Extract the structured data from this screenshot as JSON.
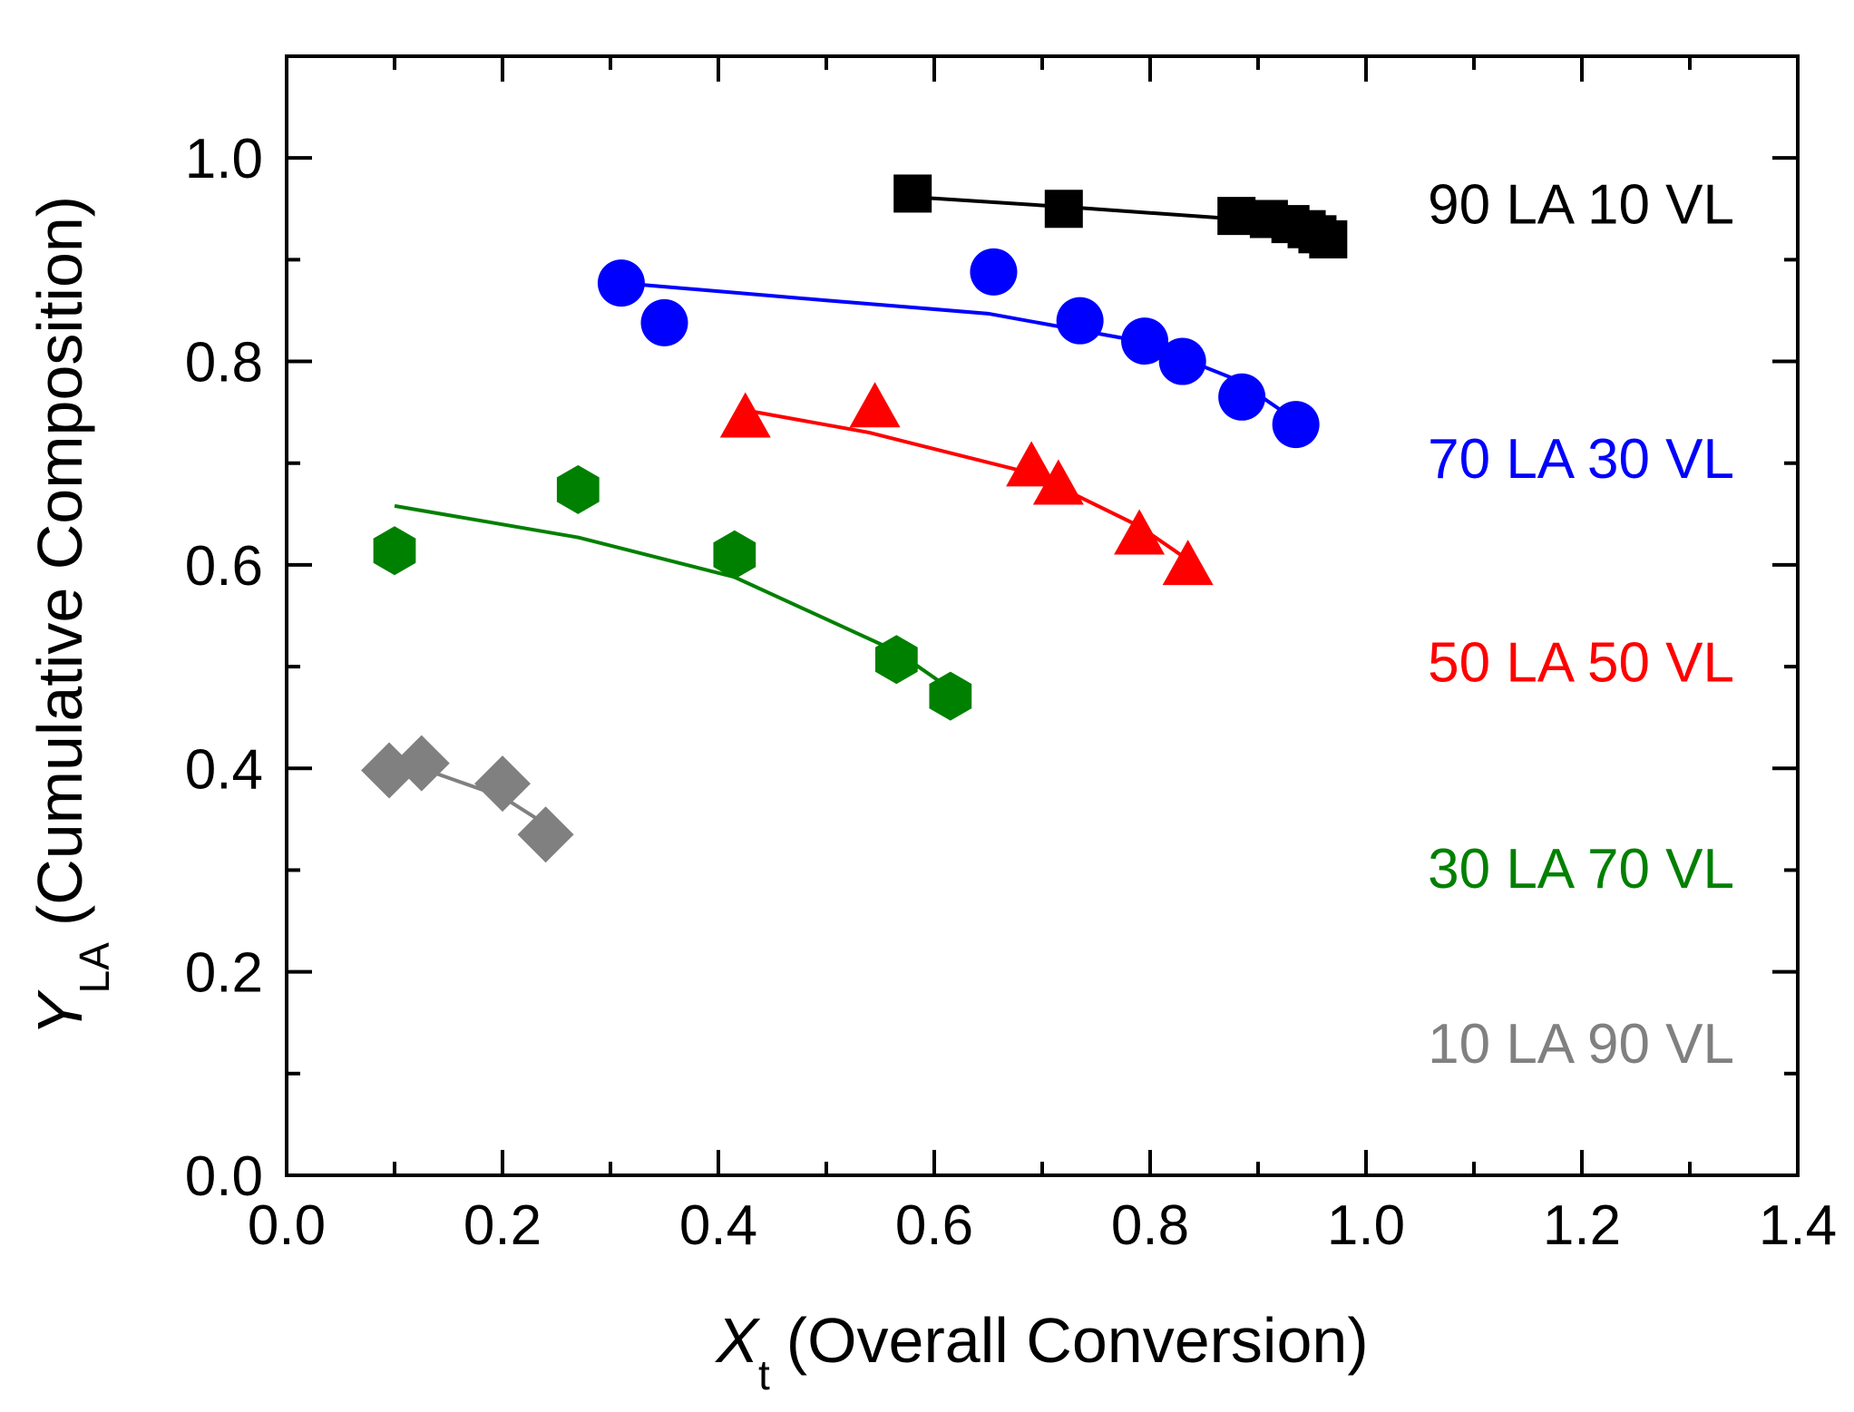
{
  "chart_data": {
    "type": "scatter",
    "title": "",
    "xlabel": {
      "symbol": "X",
      "subscript": "t",
      "text": "(Overall Conversion)"
    },
    "ylabel": {
      "symbol": "Y",
      "subscript": "LA",
      "text": "(Cumulative Composition)"
    },
    "xlim": [
      0,
      1.4
    ],
    "ylim": [
      0,
      1.1
    ],
    "xticks": [
      "0.0",
      "0.2",
      "0.4",
      "0.6",
      "0.8",
      "1.0",
      "1.2",
      "1.4"
    ],
    "yticks": [
      "0.0",
      "0.2",
      "0.4",
      "0.6",
      "0.8",
      "1.0"
    ],
    "x_minor_step": 0.1,
    "y_minor_step": 0.1,
    "grid": false,
    "legend_position": "right",
    "series": [
      {
        "name": "90 LA 10 VL",
        "color": "#000000",
        "marker": "square",
        "points": [
          [
            0.58,
            0.965
          ],
          [
            0.72,
            0.95
          ],
          [
            0.88,
            0.943
          ],
          [
            0.91,
            0.94
          ],
          [
            0.93,
            0.935
          ],
          [
            0.945,
            0.93
          ],
          [
            0.955,
            0.925
          ],
          [
            0.965,
            0.92
          ]
        ],
        "fit": [
          [
            0.575,
            0.962
          ],
          [
            0.72,
            0.952
          ],
          [
            0.88,
            0.94
          ],
          [
            0.97,
            0.924
          ]
        ]
      },
      {
        "name": "70 LA 30 VL",
        "color": "#0000ff",
        "marker": "circle",
        "points": [
          [
            0.31,
            0.877
          ],
          [
            0.35,
            0.838
          ],
          [
            0.655,
            0.888
          ],
          [
            0.735,
            0.84
          ],
          [
            0.795,
            0.82
          ],
          [
            0.83,
            0.8
          ],
          [
            0.885,
            0.765
          ],
          [
            0.935,
            0.738
          ]
        ],
        "fit": [
          [
            0.31,
            0.877
          ],
          [
            0.5,
            0.86
          ],
          [
            0.65,
            0.847
          ],
          [
            0.79,
            0.82
          ],
          [
            0.88,
            0.782
          ],
          [
            0.935,
            0.742
          ]
        ]
      },
      {
        "name": "50 LA 50 VL",
        "color": "#ff0000",
        "marker": "triangle",
        "points": [
          [
            0.425,
            0.743
          ],
          [
            0.545,
            0.753
          ],
          [
            0.69,
            0.695
          ],
          [
            0.715,
            0.677
          ],
          [
            0.79,
            0.628
          ],
          [
            0.835,
            0.598
          ]
        ],
        "fit": [
          [
            0.425,
            0.752
          ],
          [
            0.54,
            0.73
          ],
          [
            0.69,
            0.69
          ],
          [
            0.79,
            0.638
          ],
          [
            0.835,
            0.605
          ]
        ]
      },
      {
        "name": "30 LA 70 VL",
        "color": "#008000",
        "marker": "hexagon",
        "points": [
          [
            0.1,
            0.614
          ],
          [
            0.27,
            0.674
          ],
          [
            0.415,
            0.61
          ],
          [
            0.565,
            0.507
          ],
          [
            0.615,
            0.471
          ]
        ],
        "fit": [
          [
            0.1,
            0.658
          ],
          [
            0.27,
            0.627
          ],
          [
            0.415,
            0.588
          ],
          [
            0.565,
            0.515
          ],
          [
            0.615,
            0.478
          ]
        ]
      },
      {
        "name": "10 LA 90 VL",
        "color": "#808080",
        "marker": "diamond",
        "points": [
          [
            0.095,
            0.398
          ],
          [
            0.125,
            0.405
          ],
          [
            0.2,
            0.385
          ],
          [
            0.24,
            0.335
          ]
        ],
        "fit": [
          [
            0.095,
            0.4
          ],
          [
            0.125,
            0.4
          ],
          [
            0.2,
            0.372
          ],
          [
            0.24,
            0.345
          ]
        ]
      }
    ]
  }
}
